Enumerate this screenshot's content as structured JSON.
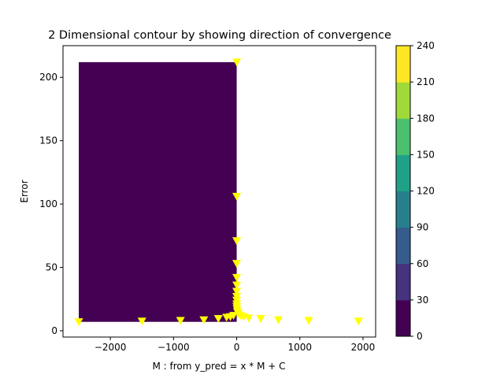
{
  "chart_data": {
    "type": "contour",
    "title": "2 Dimensional contour by showing direction of convergence",
    "xlabel": "M : from y_pred = x * M + C",
    "ylabel": "Error",
    "xlim": [
      -2750,
      2200
    ],
    "ylim": [
      -5,
      225
    ],
    "xticks": [
      -2000,
      -1000,
      0,
      1000,
      2000
    ],
    "yticks": [
      0,
      50,
      100,
      150,
      200
    ],
    "grid": false,
    "filled_region": {
      "x": [
        -2500,
        0
      ],
      "y": [
        7,
        212
      ],
      "level_band": [
        0,
        30
      ],
      "color": "#440154"
    },
    "markers": {
      "marker": "triangle-down",
      "color": "#ffff00",
      "points": [
        {
          "x": 0,
          "y": 212
        },
        {
          "x": 0,
          "y": 106
        },
        {
          "x": 0,
          "y": 71
        },
        {
          "x": 0,
          "y": 53
        },
        {
          "x": 0,
          "y": 42
        },
        {
          "x": 0,
          "y": 36
        },
        {
          "x": 0,
          "y": 31
        },
        {
          "x": 0,
          "y": 27
        },
        {
          "x": 0,
          "y": 24
        },
        {
          "x": 0,
          "y": 21
        },
        {
          "x": 0,
          "y": 19
        },
        {
          "x": 5,
          "y": 17
        },
        {
          "x": 10,
          "y": 15
        },
        {
          "x": 25,
          "y": 13.5
        },
        {
          "x": 60,
          "y": 12
        },
        {
          "x": 110,
          "y": 11
        },
        {
          "x": 190,
          "y": 10
        },
        {
          "x": 380,
          "y": 9.5
        },
        {
          "x": 660,
          "y": 8.5
        },
        {
          "x": 1140,
          "y": 8
        },
        {
          "x": 1930,
          "y": 7.5
        },
        {
          "x": -50,
          "y": 12
        },
        {
          "x": -100,
          "y": 11
        },
        {
          "x": -160,
          "y": 10.5
        },
        {
          "x": -290,
          "y": 9.5
        },
        {
          "x": -520,
          "y": 8.5
        },
        {
          "x": -890,
          "y": 8
        },
        {
          "x": -1500,
          "y": 7.5
        },
        {
          "x": -2500,
          "y": 7
        }
      ]
    },
    "colorbar": {
      "levels": [
        0,
        30,
        60,
        90,
        120,
        150,
        180,
        210,
        240
      ],
      "tick_labels": [
        "0",
        "30",
        "60",
        "90",
        "120",
        "150",
        "180",
        "210",
        "240"
      ],
      "colors": [
        "#440154",
        "#46327e",
        "#365c8d",
        "#277f8e",
        "#1fa187",
        "#4ac16d",
        "#a0da39",
        "#fde725"
      ]
    }
  }
}
